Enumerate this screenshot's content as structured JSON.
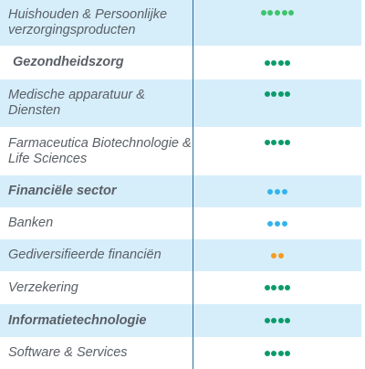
{
  "rows": [
    {
      "label": "Huishouden & Persoonlijke verzorgingsproducten",
      "bold": false,
      "shaded": true,
      "dots": 5,
      "color": "#3ec46d"
    },
    {
      "label": "Gezondheidszorg",
      "bold": true,
      "shaded": false,
      "dots": 4,
      "color": "#0b9b6a"
    },
    {
      "label": "Medische apparatuur & Diensten",
      "bold": false,
      "shaded": true,
      "dots": 4,
      "color": "#0b9b6a"
    },
    {
      "label": "Farmaceutica Biotechnologie & Life Sciences",
      "bold": false,
      "shaded": false,
      "dots": 4,
      "color": "#0b9b6a"
    },
    {
      "label": "Financiële sector",
      "bold": true,
      "shaded": true,
      "dots": 3,
      "color": "#33b4ea"
    },
    {
      "label": "Banken",
      "bold": false,
      "shaded": false,
      "dots": 3,
      "color": "#33b4ea"
    },
    {
      "label": "Gediversifieerde financiën",
      "bold": false,
      "shaded": true,
      "dots": 2,
      "color": "#f59b22"
    },
    {
      "label": "Verzekering",
      "bold": false,
      "shaded": false,
      "dots": 4,
      "color": "#0b9b6a"
    },
    {
      "label": "Informatietechnologie",
      "bold": true,
      "shaded": true,
      "dots": 4,
      "color": "#0b9b6a"
    },
    {
      "label": "Software & Services",
      "bold": false,
      "shaded": false,
      "dots": 4,
      "color": "#0b9b6a"
    }
  ]
}
